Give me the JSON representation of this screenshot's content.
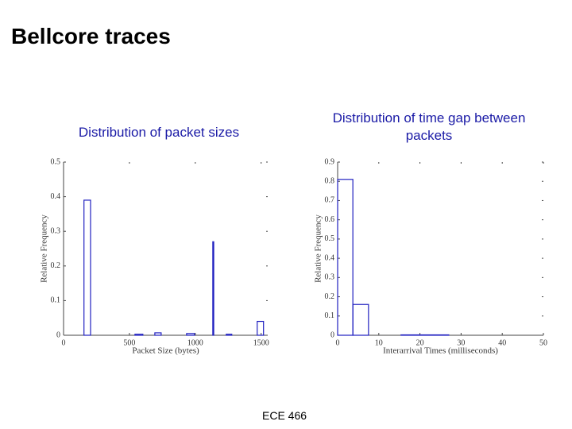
{
  "title": "Bellcore traces",
  "footer": "ECE 466",
  "chart_data": [
    {
      "type": "histogram",
      "title": "Distribution of packet sizes",
      "xlabel": "Packet Size (bytes)",
      "ylabel": "Relative Frequency",
      "bins": [
        155,
        205,
        542,
        602,
        693,
        741,
        934,
        994,
        1133,
        1140,
        1235,
        1277,
        1470,
        1518
      ],
      "counts": [
        0.39,
        0,
        0.003,
        0,
        0.007,
        0,
        0.005,
        0,
        0.27,
        0,
        0.003,
        0,
        0.04
      ],
      "color": "#2020c0",
      "xlim": [
        0,
        1550
      ],
      "xticks": [
        0,
        500,
        1000,
        1500
      ],
      "ylim": [
        0,
        0.5
      ],
      "yticks": [
        0,
        0.1,
        0.2,
        0.3,
        0.4,
        0.5
      ]
    },
    {
      "type": "histogram",
      "title": "Distribution of time gap between packets",
      "xlabel": "Interarrival Times (milliseconds)",
      "ylabel": "Relative Frequency",
      "bins": [
        0,
        3.7,
        7.5,
        15.4,
        27
      ],
      "counts": [
        0.81,
        0.16,
        0,
        0.002
      ],
      "color": "#2020c0",
      "xlim": [
        0,
        50
      ],
      "xticks": [
        0,
        10,
        20,
        30,
        40,
        50
      ],
      "ylim": [
        0,
        0.9
      ],
      "yticks": [
        0,
        0.1,
        0.2,
        0.3,
        0.4,
        0.5,
        0.6,
        0.7,
        0.8,
        0.9
      ]
    }
  ]
}
